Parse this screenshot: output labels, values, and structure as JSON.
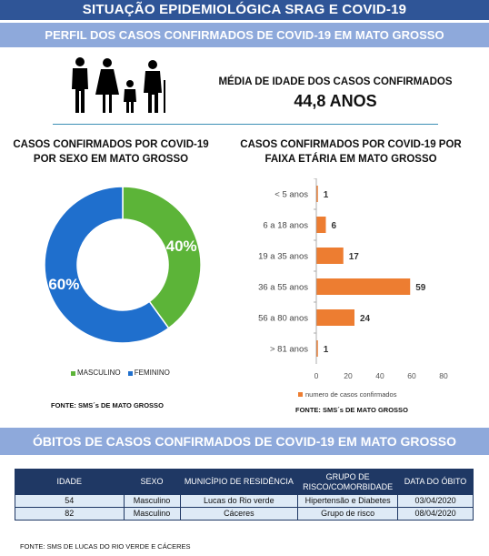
{
  "header": {
    "title": "SITUAÇÃO EPIDEMIOLÓGICA SRAG E COVID-19",
    "section1": "PERFIL DOS CASOS CONFIRMADOS DE COVID-19 EM MATO GROSSO",
    "section2": "ÓBITOS DE CASOS CONFIRMADOS DE COVID-19 EM MATO GROSSO"
  },
  "age_average": {
    "label": "MÉDIA DE IDADE DOS CASOS CONFIRMADOS",
    "value": "44,8 ANOS"
  },
  "chart_data": [
    {
      "type": "pie",
      "title": "CASOS CONFIRMADOS POR COVID-19 POR SEXO EM MATO GROSSO",
      "categories": [
        "MASCULINO",
        "FEMININO"
      ],
      "values": [
        40,
        60
      ],
      "labels": [
        "40%",
        "60%"
      ],
      "colors": [
        "#5cb438",
        "#1f6fcd"
      ],
      "legend": "bottom",
      "source": "FONTE: SMS´s DE MATO GROSSO"
    },
    {
      "type": "bar",
      "orientation": "horizontal",
      "title": "CASOS CONFIRMADOS POR COVID-19 POR FAIXA ETÁRIA EM MATO GROSSO",
      "categories": [
        "< 5 anos",
        "6 a 18 anos",
        "19 a 35 anos",
        "36 a 55 anos",
        "56 a 80 anos",
        "> 81 anos"
      ],
      "series": [
        {
          "name": "numero de casos confirmados",
          "values": [
            1,
            6,
            17,
            59,
            24,
            1
          ]
        }
      ],
      "xlim": [
        0,
        80
      ],
      "xticks": [
        0,
        20,
        40,
        60,
        80
      ],
      "color": "#ed7d31",
      "legend": "bottom",
      "source": "FONTE: SMS´s DE MATO GROSSO"
    }
  ],
  "obitos_table": {
    "headers": [
      "IDADE",
      "SEXO",
      "MUNICÍPIO DE RESIDÊNCIA",
      "GRUPO DE RISCO/COMORBIDADE",
      "DATA DO ÓBITO"
    ],
    "rows": [
      [
        "54",
        "Masculino",
        "Lucas do Rio verde",
        "Hipertensão e Diabetes",
        "03/04/2020"
      ],
      [
        "82",
        "Masculino",
        "Cáceres",
        "Grupo de risco",
        "08/04/2020"
      ]
    ],
    "source": "FONTE: SMS DE LUCAS DO RIO VERDE E CÁCERES"
  },
  "icons": {
    "family": "family-icon"
  }
}
